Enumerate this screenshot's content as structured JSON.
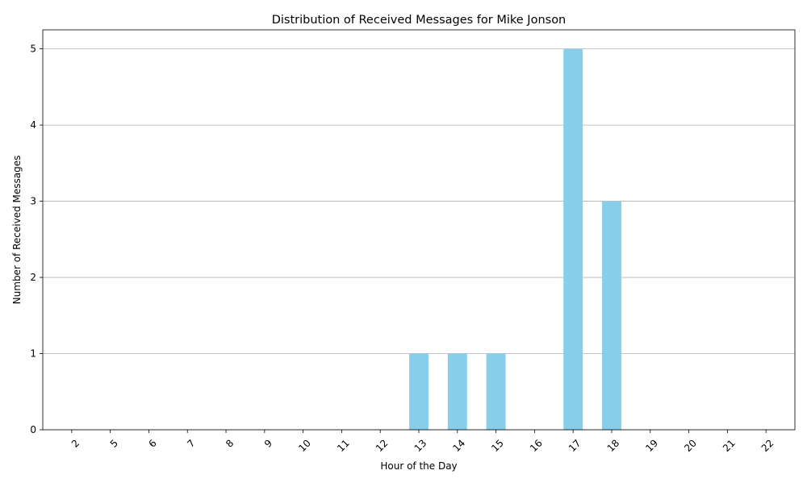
{
  "chart_data": {
    "type": "bar",
    "title": "Distribution of Received Messages for Mike Jonson",
    "xlabel": "Hour of the Day",
    "ylabel": "Number of Received Messages",
    "categories": [
      "2",
      "5",
      "6",
      "7",
      "8",
      "9",
      "10",
      "11",
      "12",
      "13",
      "14",
      "15",
      "16",
      "17",
      "18",
      "19",
      "20",
      "21",
      "22"
    ],
    "values": [
      0,
      0,
      0,
      0,
      0,
      0,
      0,
      0,
      0,
      1,
      1,
      1,
      0,
      5,
      3,
      0,
      0,
      0,
      0
    ],
    "ylim": [
      0,
      5.25
    ],
    "yticks": [
      0,
      1,
      2,
      3,
      4,
      5
    ],
    "grid": "y-axis",
    "bar_color": "#87ceeb",
    "x_tick_rotation": 45
  }
}
